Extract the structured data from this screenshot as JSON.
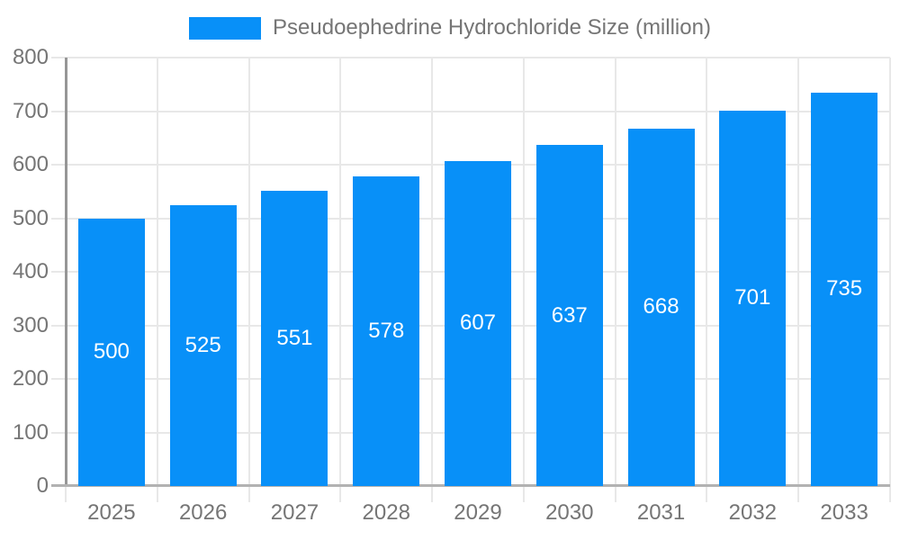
{
  "chart_data": {
    "type": "bar",
    "title": "",
    "legend": "Pseudoephedrine Hydrochloride Size (million)",
    "legend_position": "top",
    "categories": [
      "2025",
      "2026",
      "2027",
      "2028",
      "2029",
      "2030",
      "2031",
      "2032",
      "2033"
    ],
    "series": [
      {
        "name": "Pseudoephedrine Hydrochloride Size (million)",
        "values": [
          500,
          525,
          551,
          578,
          607,
          637,
          668,
          701,
          735
        ]
      }
    ],
    "xlabel": "",
    "ylabel": "",
    "ylim": [
      0,
      800
    ],
    "ytick_step": 100,
    "yticks": [
      "0",
      "100",
      "200",
      "300",
      "400",
      "500",
      "600",
      "700",
      "800"
    ],
    "grid": "horizontal-and-vertical",
    "bar_labels_inside": true,
    "colors": {
      "bar": "#0890F8",
      "bar_label": "#ffffff",
      "axis_text": "#757575",
      "grid": "#e8e8e8",
      "y_axis_line": "#969696",
      "x_axis_line": "#b2b2b2",
      "background": "#ffffff"
    }
  }
}
